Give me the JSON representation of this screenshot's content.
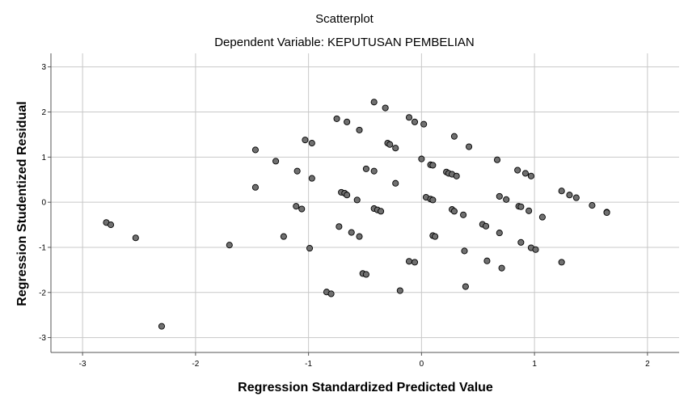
{
  "chart_data": {
    "type": "scatter",
    "title": "Scatterplot",
    "subtitle": "Dependent Variable: KEPUTUSAN PEMBELIAN",
    "xlabel": "Regression Standardized Predicted Value",
    "ylabel": "Regression Studentized Residual",
    "xlim": [
      -3.28,
      2.28
    ],
    "ylim": [
      -3.33,
      3.3
    ],
    "xticks": [
      -3,
      -2,
      -1,
      0,
      1,
      2
    ],
    "yticks": [
      -3,
      -2,
      -1,
      0,
      1,
      2,
      3
    ],
    "grid": true,
    "colors": {
      "marker_fill": "#707070",
      "marker_stroke": "#000000",
      "grid": "#c8c8c8",
      "axis": "#555555"
    },
    "points": [
      {
        "x": -2.79,
        "y": -0.45
      },
      {
        "x": -2.75,
        "y": -0.5
      },
      {
        "x": -2.53,
        "y": -0.79
      },
      {
        "x": -2.3,
        "y": -2.75
      },
      {
        "x": -1.7,
        "y": -0.95
      },
      {
        "x": -1.47,
        "y": 1.16
      },
      {
        "x": -1.47,
        "y": 0.33
      },
      {
        "x": -1.29,
        "y": 0.91
      },
      {
        "x": -1.22,
        "y": -0.76
      },
      {
        "x": -1.11,
        "y": -0.09
      },
      {
        "x": -1.1,
        "y": 0.69
      },
      {
        "x": -1.06,
        "y": -0.15
      },
      {
        "x": -1.03,
        "y": 1.38
      },
      {
        "x": -0.99,
        "y": -1.02
      },
      {
        "x": -0.97,
        "y": 1.31
      },
      {
        "x": -0.97,
        "y": 0.53
      },
      {
        "x": -0.84,
        "y": -1.99
      },
      {
        "x": -0.8,
        "y": -2.03
      },
      {
        "x": -0.75,
        "y": 1.85
      },
      {
        "x": -0.73,
        "y": -0.54
      },
      {
        "x": -0.71,
        "y": 0.22
      },
      {
        "x": -0.68,
        "y": 0.2
      },
      {
        "x": -0.66,
        "y": 1.78
      },
      {
        "x": -0.66,
        "y": 0.16
      },
      {
        "x": -0.62,
        "y": -0.67
      },
      {
        "x": -0.57,
        "y": 0.05
      },
      {
        "x": -0.55,
        "y": 1.6
      },
      {
        "x": -0.55,
        "y": -0.76
      },
      {
        "x": -0.52,
        "y": -1.58
      },
      {
        "x": -0.49,
        "y": -1.6
      },
      {
        "x": -0.49,
        "y": 0.74
      },
      {
        "x": -0.42,
        "y": 2.22
      },
      {
        "x": -0.42,
        "y": 0.69
      },
      {
        "x": -0.42,
        "y": -0.14
      },
      {
        "x": -0.39,
        "y": -0.17
      },
      {
        "x": -0.36,
        "y": -0.2
      },
      {
        "x": -0.32,
        "y": 2.09
      },
      {
        "x": -0.3,
        "y": 1.31
      },
      {
        "x": -0.28,
        "y": 1.28
      },
      {
        "x": -0.23,
        "y": 1.2
      },
      {
        "x": -0.23,
        "y": 0.42
      },
      {
        "x": -0.19,
        "y": -1.96
      },
      {
        "x": -0.11,
        "y": 1.88
      },
      {
        "x": -0.11,
        "y": -1.31
      },
      {
        "x": -0.06,
        "y": 1.78
      },
      {
        "x": -0.06,
        "y": -1.33
      },
      {
        "x": 0.0,
        "y": 0.96
      },
      {
        "x": 0.02,
        "y": 1.73
      },
      {
        "x": 0.04,
        "y": 0.11
      },
      {
        "x": 0.08,
        "y": 0.83
      },
      {
        "x": 0.08,
        "y": 0.07
      },
      {
        "x": 0.1,
        "y": 0.82
      },
      {
        "x": 0.1,
        "y": 0.05
      },
      {
        "x": 0.1,
        "y": -0.74
      },
      {
        "x": 0.12,
        "y": -0.76
      },
      {
        "x": 0.22,
        "y": 0.67
      },
      {
        "x": 0.24,
        "y": 0.64
      },
      {
        "x": 0.27,
        "y": 0.62
      },
      {
        "x": 0.27,
        "y": -0.16
      },
      {
        "x": 0.29,
        "y": -0.2
      },
      {
        "x": 0.29,
        "y": 1.46
      },
      {
        "x": 0.31,
        "y": 0.58
      },
      {
        "x": 0.37,
        "y": -0.28
      },
      {
        "x": 0.38,
        "y": -1.08
      },
      {
        "x": 0.39,
        "y": -1.87
      },
      {
        "x": 0.42,
        "y": 1.23
      },
      {
        "x": 0.54,
        "y": -0.49
      },
      {
        "x": 0.57,
        "y": -0.53
      },
      {
        "x": 0.58,
        "y": -1.3
      },
      {
        "x": 0.67,
        "y": 0.94
      },
      {
        "x": 0.69,
        "y": 0.13
      },
      {
        "x": 0.69,
        "y": -0.68
      },
      {
        "x": 0.71,
        "y": -1.46
      },
      {
        "x": 0.75,
        "y": 0.06
      },
      {
        "x": 0.85,
        "y": 0.71
      },
      {
        "x": 0.86,
        "y": -0.09
      },
      {
        "x": 0.88,
        "y": -0.1
      },
      {
        "x": 0.88,
        "y": -0.89
      },
      {
        "x": 0.92,
        "y": 0.64
      },
      {
        "x": 0.95,
        "y": -0.19
      },
      {
        "x": 0.97,
        "y": 0.58
      },
      {
        "x": 0.97,
        "y": -1.01
      },
      {
        "x": 1.01,
        "y": -1.05
      },
      {
        "x": 1.07,
        "y": -0.33
      },
      {
        "x": 1.24,
        "y": 0.25
      },
      {
        "x": 1.24,
        "y": -1.33
      },
      {
        "x": 1.31,
        "y": 0.16
      },
      {
        "x": 1.37,
        "y": 0.1
      },
      {
        "x": 1.51,
        "y": -0.07
      },
      {
        "x": 1.64,
        "y": -0.22
      },
      {
        "x": 1.64,
        "y": -0.23
      }
    ]
  }
}
